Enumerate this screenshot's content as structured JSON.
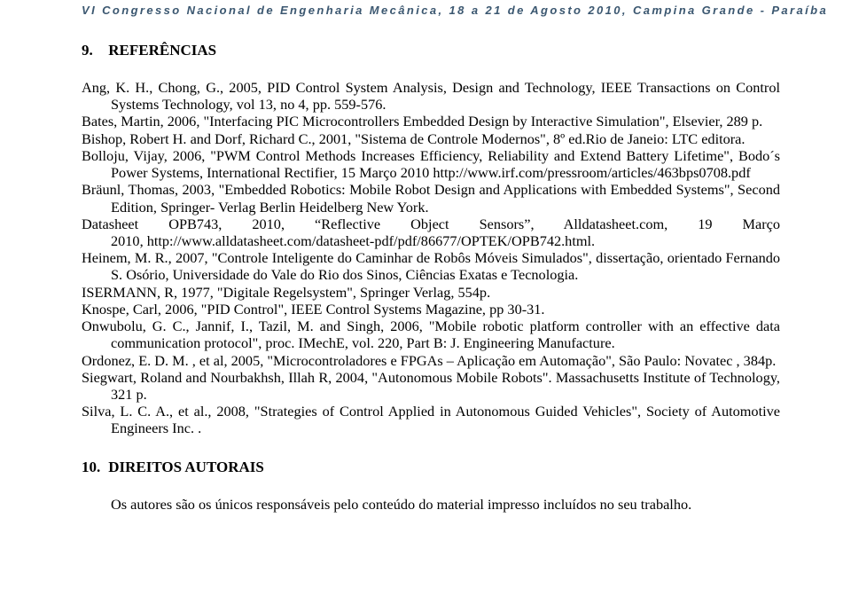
{
  "running_header": "VI Congresso Nacional de Engenharia Mecânica, 18 a 21 de Agosto 2010, Campina Grande - Paraíba",
  "sections": {
    "references": {
      "number": "9.",
      "title": "REFERÊNCIAS"
    },
    "rights": {
      "number": "10.",
      "title": "DIREITOS AUTORAIS",
      "body": "Os autores são os únicos responsáveis pelo conteúdo do material impresso incluídos no seu trabalho."
    }
  },
  "references": [
    "Ang, K. H., Chong, G., 2005, PID Control System Analysis, Design and Technology, IEEE Transactions on Control Systems Technology, vol 13, no 4, pp. 559-576.",
    "Bates, Martin, 2006, \"Interfacing PIC Microcontrollers Embedded Design by Interactive Simulation\", Elsevier, 289 p.",
    "Bishop, Robert H. and Dorf, Richard C., 2001, \"Sistema de Controle Modernos\", 8º ed.Rio de Janeio: LTC editora.",
    "Bolloju, Vijay, 2006, \"PWM Control Methods Increases Efficiency, Reliability and Extend Battery Lifetime\", Bodo´s Power Systems, International Rectifier, 15 Março 2010 http://www.irf.com/pressroom/articles/463bps0708.pdf",
    "Bräunl, Thomas, 2003, \"Embedded Robotics: Mobile Robot Design and Applications with Embedded Systems\", Second Edition, Springer- Verlag Berlin Heidelberg New York.",
    "Datasheet OPB743, 2010, \"Reflective Object Sensors\", Alldatasheet.com, 19 Março 2010, http://www.alldatasheet.com/datasheet-pdf/pdf/86677/OPTEK/OPB742.html.",
    "Heinem, M. R., 2007, \"Controle Inteligente do Caminhar de Robôs Móveis Simulados\", dissertação, orientado Fernando S. Osório, Universidade do Vale do Rio dos Sinos, Ciências Exatas e Tecnologia.",
    "ISERMANN, R, 1977, \"Digitale Regelsystem\", Springer Verlag, 554p.",
    "Knospe, Carl, 2006, \"PID Control\", IEEE Control Systems Magazine, pp 30-31.",
    "Onwubolu, G. C., Jannif, I., Tazil, M.  and Singh, 2006, \"Mobile robotic platform controller with an effective data communication protocol\", proc. IMechE, vol. 220, Part B: J. Engineering Manufacture.",
    "Ordonez, E. D. M. , et al, 2005, \"Microcontroladores e FPGAs – Aplicação em Automação\", São Paulo: Novatec , 384p.",
    "Siegwart, Roland and Nourbakhsh, Illah R, 2004, \"Autonomous Mobile Robots\". Massachusetts Institute of Technology, 321 p.",
    "Silva, L. C. A., et al., 2008, \"Strategies of Control Applied in Autonomous Guided Vehicles\", Society of Automotive Engineers Inc. ."
  ]
}
